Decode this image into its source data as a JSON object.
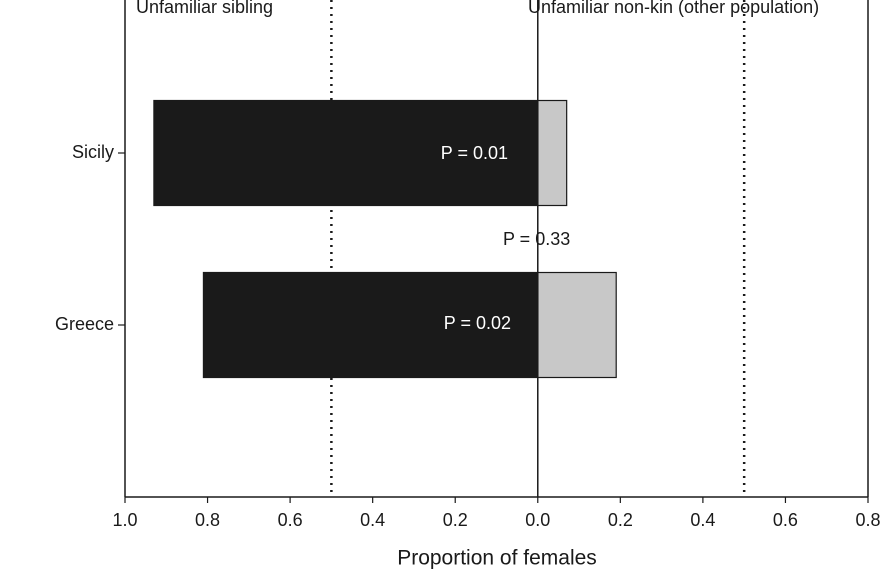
{
  "chart_data": {
    "type": "diverging_bar",
    "x_label": "Proportion of females",
    "categories": [
      "Sicily",
      "Greece"
    ],
    "series": [
      {
        "name": "Unfamiliar sibling",
        "color": "#1a1a1a",
        "values": [
          -0.93,
          -0.81
        ]
      },
      {
        "name": "Unfamiliar non-kin (other population)",
        "color": "#c8c8c8",
        "values": [
          0.07,
          0.19
        ]
      }
    ],
    "xlim": [
      -1.0,
      0.8
    ],
    "xticks": [
      {
        "value": -1.0,
        "label": "1.0"
      },
      {
        "value": -0.8,
        "label": "0.8"
      },
      {
        "value": -0.6,
        "label": "0.6"
      },
      {
        "value": -0.4,
        "label": "0.4"
      },
      {
        "value": -0.2,
        "label": "0.2"
      },
      {
        "value": 0,
        "label": "0.0"
      },
      0.2,
      0.4,
      0.6,
      0.8
    ],
    "reference_lines": [
      -0.5,
      0.5
    ],
    "annotations": [
      "P = 0.01",
      "P = 0.02",
      "P = 0.33"
    ]
  }
}
